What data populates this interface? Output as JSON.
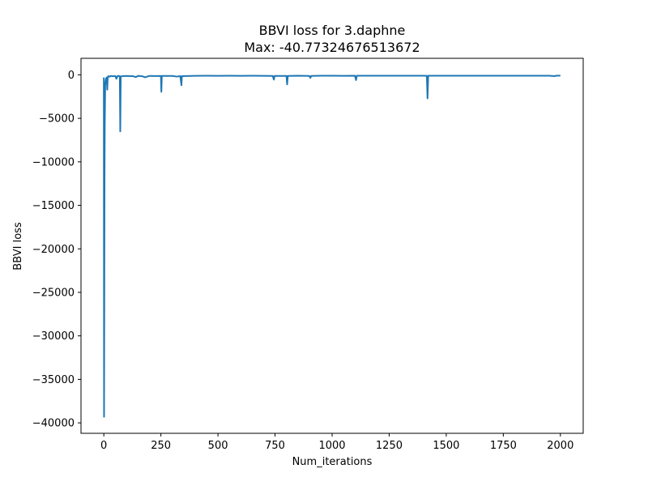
{
  "chart_data": {
    "type": "line",
    "title_line1": "BBVI loss for 3.daphne",
    "title_line2": "Max: -40.77324676513672",
    "xlabel": "Num_iterations",
    "ylabel": "BBVI loss",
    "xlim": [
      -100,
      2100
    ],
    "ylim": [
      -41200,
      1900
    ],
    "x_ticks": [
      0,
      250,
      500,
      750,
      1000,
      1250,
      1500,
      1750,
      2000
    ],
    "x_tick_labels": [
      "0",
      "250",
      "500",
      "750",
      "1000",
      "1250",
      "1500",
      "1750",
      "2000"
    ],
    "y_ticks": [
      0,
      -5000,
      -10000,
      -15000,
      -20000,
      -25000,
      -30000,
      -35000,
      -40000
    ],
    "y_tick_labels": [
      "0",
      "−5000",
      "−10000",
      "−15000",
      "−20000",
      "−25000",
      "−30000",
      "−35000",
      "−40000"
    ],
    "grid": false,
    "legend": "none",
    "series": [
      {
        "color": "#1f77b4",
        "points": [
          [
            0,
            -300
          ],
          [
            1,
            -39300
          ],
          [
            2,
            -26500
          ],
          [
            3,
            -12000
          ],
          [
            4,
            -6000
          ],
          [
            5,
            -3500
          ],
          [
            6,
            -1200
          ],
          [
            8,
            -700
          ],
          [
            10,
            -400
          ],
          [
            12,
            -800
          ],
          [
            13,
            -300
          ],
          [
            15,
            -1700
          ],
          [
            17,
            -300
          ],
          [
            20,
            -150
          ],
          [
            25,
            -220
          ],
          [
            30,
            -120
          ],
          [
            40,
            -160
          ],
          [
            50,
            -130
          ],
          [
            55,
            -450
          ],
          [
            60,
            -120
          ],
          [
            70,
            -150
          ],
          [
            72,
            -6500
          ],
          [
            74,
            -200
          ],
          [
            80,
            -150
          ],
          [
            100,
            -120
          ],
          [
            130,
            -160
          ],
          [
            140,
            -260
          ],
          [
            150,
            -110
          ],
          [
            170,
            -170
          ],
          [
            180,
            -280
          ],
          [
            200,
            -120
          ],
          [
            230,
            -140
          ],
          [
            250,
            -130
          ],
          [
            252,
            -1950
          ],
          [
            254,
            -130
          ],
          [
            300,
            -120
          ],
          [
            320,
            -200
          ],
          [
            335,
            -150
          ],
          [
            340,
            -1200
          ],
          [
            342,
            -150
          ],
          [
            400,
            -110
          ],
          [
            450,
            -100
          ],
          [
            500,
            -110
          ],
          [
            550,
            -100
          ],
          [
            600,
            -110
          ],
          [
            650,
            -100
          ],
          [
            700,
            -110
          ],
          [
            740,
            -130
          ],
          [
            745,
            -550
          ],
          [
            748,
            -130
          ],
          [
            800,
            -120
          ],
          [
            803,
            -1100
          ],
          [
            806,
            -120
          ],
          [
            850,
            -100
          ],
          [
            900,
            -130
          ],
          [
            905,
            -350
          ],
          [
            908,
            -120
          ],
          [
            950,
            -100
          ],
          [
            1000,
            -100
          ],
          [
            1050,
            -110
          ],
          [
            1100,
            -100
          ],
          [
            1105,
            -600
          ],
          [
            1108,
            -100
          ],
          [
            1150,
            -100
          ],
          [
            1200,
            -100
          ],
          [
            1250,
            -100
          ],
          [
            1300,
            -100
          ],
          [
            1350,
            -100
          ],
          [
            1400,
            -100
          ],
          [
            1415,
            -110
          ],
          [
            1418,
            -2700
          ],
          [
            1421,
            -100
          ],
          [
            1450,
            -100
          ],
          [
            1500,
            -100
          ],
          [
            1550,
            -100
          ],
          [
            1600,
            -100
          ],
          [
            1650,
            -100
          ],
          [
            1700,
            -100
          ],
          [
            1750,
            -100
          ],
          [
            1800,
            -100
          ],
          [
            1850,
            -100
          ],
          [
            1900,
            -100
          ],
          [
            1950,
            -100
          ],
          [
            1975,
            -150
          ],
          [
            1980,
            -100
          ],
          [
            2000,
            -90
          ]
        ]
      }
    ]
  }
}
